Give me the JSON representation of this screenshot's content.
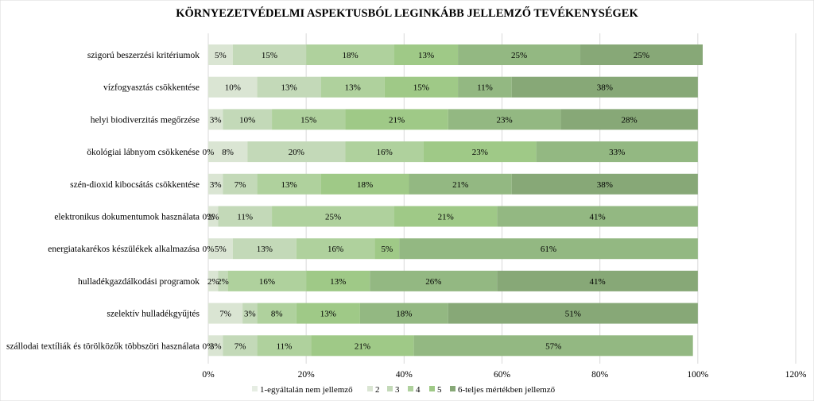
{
  "chart_data": {
    "type": "bar",
    "orientation": "horizontal",
    "stacked": true,
    "title": "KÖRNYEZETVÉDELMI ASPEKTUSBÓL LEGINKÁBB JELLEMZŐ TEVÉKENYSÉGEK",
    "xlabel": "",
    "ylabel": "",
    "xlim": [
      0,
      120
    ],
    "x_ticks": [
      "0%",
      "20%",
      "40%",
      "60%",
      "80%",
      "100%",
      "120%"
    ],
    "grid": true,
    "legend_position": "bottom",
    "categories": [
      "szigorú beszerzési kritériumok",
      "vízfogyasztás csökkentése",
      "helyi biodiverzitás megőrzése",
      "ökológiai lábnyom csökkenése",
      "szén-dioxid kibocsátás csökkentése",
      "elektronikus dokumentumok használata",
      "energiatakarékos készülékek alkalmazása",
      "hulladékgazdálkodási programok",
      "szelektív hulladékgyűjtés",
      "szállodai textíliák és törölközők többszöri használata"
    ],
    "series": [
      {
        "name": "1-egyáltalán nem jellemző",
        "color": "#e6ede3",
        "values": [
          0,
          0,
          0,
          0,
          0,
          0,
          0,
          0,
          0,
          0
        ],
        "labels": [
          "",
          "",
          "",
          "0%",
          "",
          "0%",
          "0%",
          "",
          "",
          "0%"
        ]
      },
      {
        "name": "2",
        "color": "#dae5d3",
        "values": [
          5,
          10,
          3,
          8,
          3,
          2,
          5,
          2,
          7,
          3
        ],
        "labels": [
          "5%",
          "10%",
          "3%",
          "8%",
          "3%",
          "2%",
          "5%",
          "2%",
          "7%",
          "3%"
        ]
      },
      {
        "name": "3",
        "color": "#c3d9b8",
        "values": [
          15,
          13,
          10,
          20,
          7,
          11,
          13,
          2,
          3,
          7
        ],
        "labels": [
          "15%",
          "13%",
          "10%",
          "20%",
          "7%",
          "11%",
          "13%",
          "2%",
          "3%",
          "7%"
        ]
      },
      {
        "name": "4",
        "color": "#afd19d",
        "values": [
          18,
          13,
          15,
          16,
          13,
          25,
          16,
          16,
          8,
          11
        ],
        "labels": [
          "18%",
          "13%",
          "15%",
          "16%",
          "13%",
          "25%",
          "16%",
          "16%",
          "8%",
          "11%"
        ]
      },
      {
        "name": "5",
        "color": "#9fc987",
        "values": [
          13,
          15,
          21,
          23,
          18,
          21,
          5,
          13,
          13,
          21
        ],
        "labels": [
          "13%",
          "15%",
          "21%",
          "23%",
          "18%",
          "21%",
          "5%",
          "13%",
          "13%",
          "21%"
        ]
      },
      {
        "name": "5",
        "color": "#93b882",
        "values": [
          25,
          11,
          23,
          33,
          21,
          41,
          61,
          26,
          18,
          57
        ],
        "labels": [
          "25%",
          "11%",
          "23%",
          "33%",
          "21%",
          "41%",
          "61%",
          "26%",
          "18%",
          "57%"
        ]
      },
      {
        "name": "6-teljes mértékben jellemző",
        "color": "#87a877",
        "values": [
          25,
          38,
          28,
          0,
          38,
          0,
          0,
          41,
          51,
          0
        ],
        "labels": [
          "25%",
          "38%",
          "28%",
          "",
          "38%",
          "",
          "",
          "41%",
          "51%",
          ""
        ]
      }
    ]
  }
}
